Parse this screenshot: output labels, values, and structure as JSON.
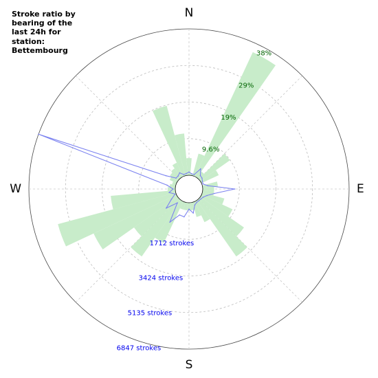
{
  "chart_data": {
    "type": "polar",
    "title": "Stroke ratio by bearing of the last 24h for station: Bettembourg",
    "cardinals": [
      "N",
      "E",
      "S",
      "W"
    ],
    "ratio_ticks": [
      "9.6%",
      "19%",
      "29%",
      "38%"
    ],
    "ratio_max": 38.4,
    "stroke_ticks": [
      "1712 strokes",
      "3424 strokes",
      "5135 strokes",
      "6847 strokes"
    ],
    "stroke_max": 6847,
    "sector_width_deg": 10,
    "colors": {
      "ratio_fill": "#c8ecca",
      "ratio_label": "#006400",
      "stroke_line": "#7b82f0",
      "stroke_label": "#0000ee"
    },
    "series": [
      {
        "name": "Stroke ratio",
        "bearing_deg": [
          0,
          10,
          20,
          30,
          40,
          50,
          60,
          70,
          80,
          90,
          100,
          110,
          120,
          130,
          140,
          150,
          160,
          170,
          180,
          190,
          200,
          210,
          220,
          230,
          240,
          250,
          260,
          270,
          280,
          290,
          300,
          310,
          320,
          330,
          340,
          350
        ],
        "values_pct": [
          4.5,
          0.5,
          6,
          36,
          2,
          9.5,
          5,
          0,
          4,
          3,
          3,
          6,
          9,
          14,
          18,
          6,
          4,
          2,
          2,
          2,
          2,
          12,
          18,
          14,
          24,
          32,
          17,
          2,
          1.5,
          1,
          2,
          2.5,
          3,
          4,
          19,
          11
        ]
      },
      {
        "name": "Strokes",
        "bearing_deg": [
          0,
          10,
          20,
          30,
          40,
          50,
          60,
          70,
          80,
          90,
          100,
          110,
          120,
          130,
          140,
          150,
          160,
          170,
          180,
          190,
          200,
          210,
          220,
          230,
          240,
          250,
          260,
          270,
          280,
          290,
          300,
          310,
          320,
          330,
          340,
          350
        ],
        "values": [
          150,
          80,
          80,
          450,
          180,
          150,
          80,
          50,
          250,
          1500,
          560,
          250,
          120,
          80,
          70,
          80,
          150,
          500,
          300,
          680,
          650,
          1150,
          200,
          750,
          300,
          50,
          300,
          100,
          400,
          6847,
          600,
          150,
          150,
          230,
          80,
          90
        ]
      }
    ]
  }
}
